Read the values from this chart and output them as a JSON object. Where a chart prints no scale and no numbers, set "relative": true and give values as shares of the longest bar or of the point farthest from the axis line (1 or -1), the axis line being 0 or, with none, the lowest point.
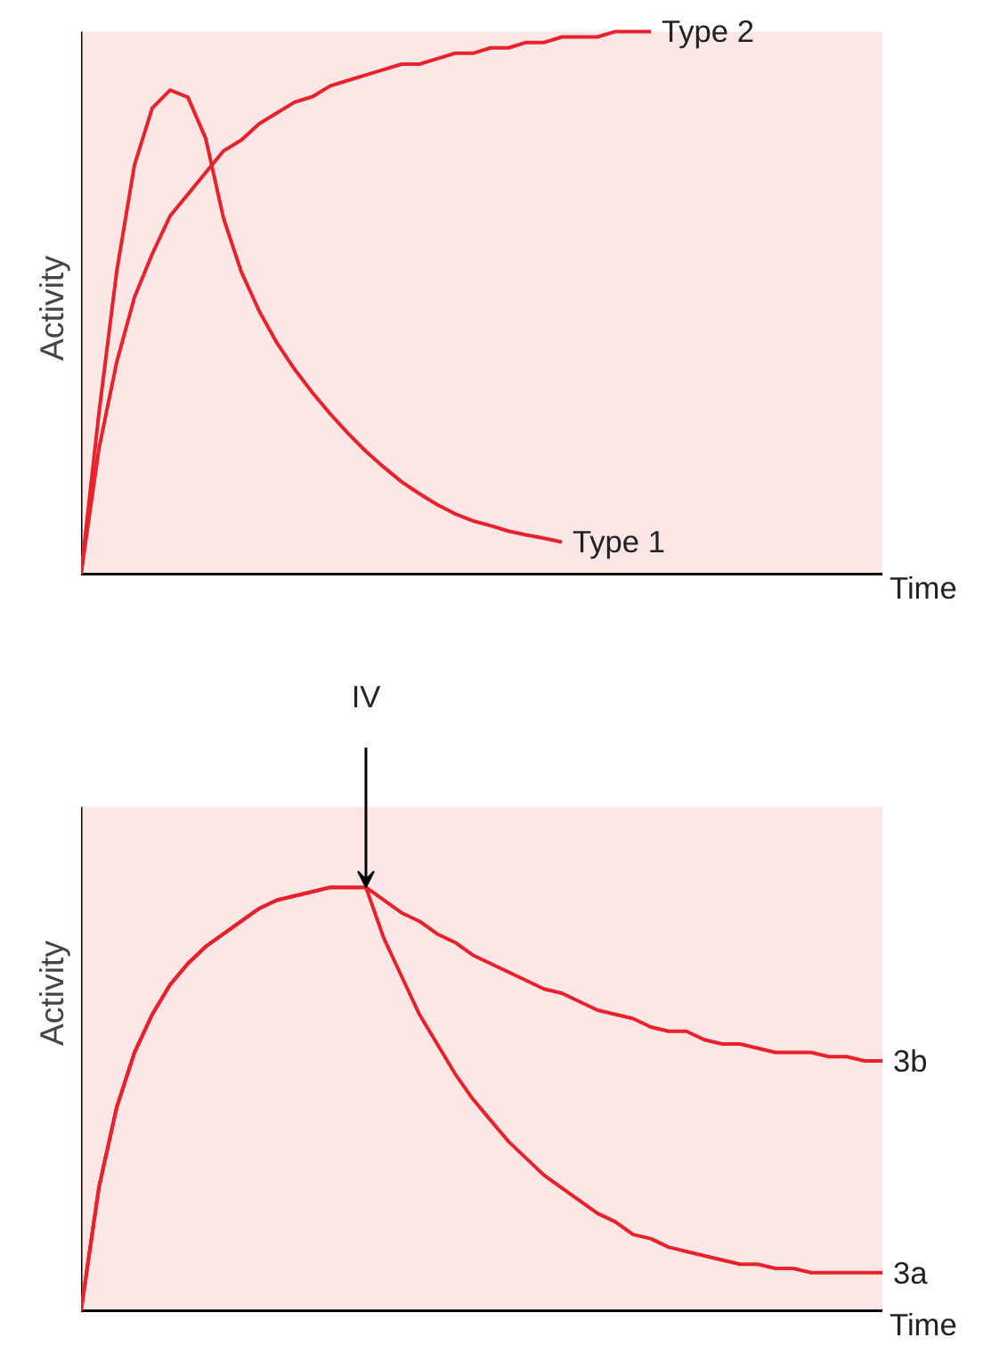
{
  "chart_data": [
    {
      "type": "line",
      "relative": true,
      "xlabel": "Time",
      "ylabel": "Activity",
      "categories": [
        null,
        null,
        null,
        null,
        null,
        null,
        null,
        null,
        null,
        null,
        null,
        null,
        null,
        null,
        null,
        null,
        null,
        null,
        null,
        null,
        null,
        null,
        null,
        null,
        null,
        null,
        null,
        null,
        null,
        null,
        null,
        null,
        null,
        null,
        null,
        null,
        null,
        null,
        null,
        null,
        null,
        null,
        null,
        null,
        null,
        null
      ],
      "series": [
        {
          "name": "Type 1",
          "color": "#e8212b",
          "values": [
            0,
            0.295,
            0.557,
            0.754,
            0.859,
            0.892,
            0.879,
            0.803,
            0.656,
            0.557,
            0.485,
            0.426,
            0.377,
            0.334,
            0.295,
            0.259,
            0.226,
            0.197,
            0.17,
            0.148,
            0.128,
            0.111,
            0.098,
            0.089,
            0.079,
            0.072,
            0.066,
            0.059,
            null,
            null,
            null,
            null,
            null,
            null,
            null,
            null,
            null,
            null,
            null,
            null,
            null,
            null,
            null,
            null,
            null,
            null
          ]
        },
        {
          "name": "Type 2",
          "color": "#e8212b",
          "values": [
            0,
            0.23,
            0.39,
            0.51,
            0.59,
            0.66,
            0.7,
            0.74,
            0.78,
            0.8,
            0.83,
            0.85,
            0.87,
            0.88,
            0.9,
            0.91,
            0.92,
            0.93,
            0.94,
            0.94,
            0.95,
            0.96,
            0.96,
            0.97,
            0.97,
            0.98,
            0.98,
            0.99,
            0.99,
            0.99,
            1.0,
            1.0,
            1.0,
            null,
            null,
            null,
            null,
            null,
            null,
            null,
            null,
            null,
            null,
            null,
            null,
            null
          ]
        }
      ]
    },
    {
      "type": "line",
      "relative": true,
      "xlabel": "Time",
      "ylabel": "Activity",
      "annotations": [
        "IV"
      ],
      "categories": [
        null,
        null,
        null,
        null,
        null,
        null,
        null,
        null,
        null,
        null,
        null,
        null,
        null,
        null,
        null,
        null,
        null,
        null,
        null,
        null,
        null,
        null,
        null,
        null,
        null,
        null,
        null,
        null,
        null,
        null,
        null,
        null,
        null,
        null,
        null,
        null,
        null,
        null,
        null,
        null,
        null,
        null,
        null,
        null,
        null,
        null
      ],
      "series": [
        {
          "name": "3b",
          "color": "#e8212b",
          "values": [
            0,
            0.29,
            0.48,
            0.61,
            0.7,
            0.77,
            0.82,
            0.86,
            0.89,
            0.92,
            0.95,
            0.97,
            0.98,
            0.99,
            1.0,
            1.0,
            1.0,
            0.97,
            0.94,
            0.92,
            0.89,
            0.87,
            0.84,
            0.82,
            0.8,
            0.78,
            0.76,
            0.75,
            0.73,
            0.71,
            0.7,
            0.69,
            0.67,
            0.66,
            0.66,
            0.64,
            0.63,
            0.63,
            0.62,
            0.61,
            0.61,
            0.61,
            0.6,
            0.6,
            0.59,
            0.59
          ]
        },
        {
          "name": "3a",
          "color": "#e8212b",
          "values": [
            0,
            0.29,
            0.48,
            0.61,
            0.7,
            0.77,
            0.82,
            0.86,
            0.89,
            0.92,
            0.95,
            0.97,
            0.98,
            0.99,
            1.0,
            1.0,
            1.0,
            0.88,
            0.79,
            0.7,
            0.63,
            0.56,
            0.5,
            0.45,
            0.4,
            0.36,
            0.32,
            0.29,
            0.26,
            0.23,
            0.21,
            0.18,
            0.17,
            0.15,
            0.14,
            0.13,
            0.12,
            0.11,
            0.11,
            0.1,
            0.1,
            0.09,
            0.09,
            0.09,
            0.09,
            0.09
          ]
        }
      ]
    }
  ]
}
